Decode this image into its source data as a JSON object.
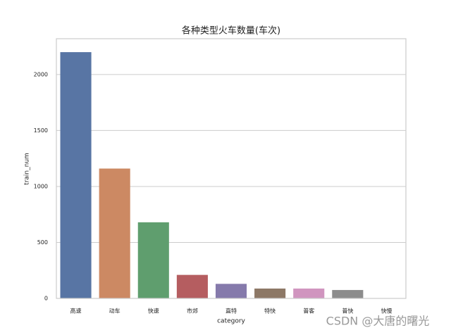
{
  "chart_data": {
    "type": "bar",
    "title": "各种类型火车数量(车次)",
    "x_label": "category",
    "y_label": "train_num",
    "categories": [
      "高速",
      "动车",
      "快速",
      "市郊",
      "直特",
      "特快",
      "普客",
      "普快",
      "快慢"
    ],
    "values": [
      2200,
      1160,
      680,
      210,
      130,
      88,
      88,
      75,
      3
    ],
    "colors": [
      "#5875a4",
      "#cc8963",
      "#5f9e6e",
      "#b55d60",
      "#857aab",
      "#8d7866",
      "#d095bf",
      "#8c8c8c",
      "#c1b37f"
    ],
    "ylim": [
      0,
      2320
    ],
    "yticks": [
      0,
      500,
      1000,
      1500,
      2000
    ],
    "grid": true
  },
  "watermark": "CSDN @大唐的曙光"
}
